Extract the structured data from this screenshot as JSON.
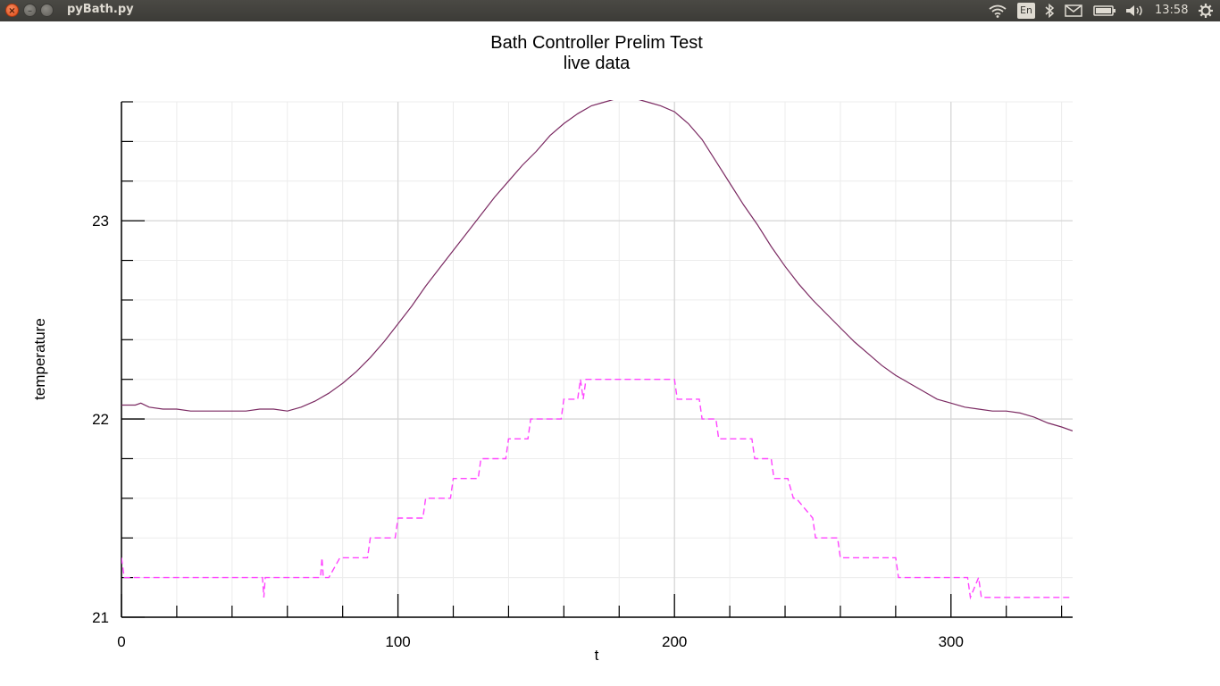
{
  "window": {
    "title": "pyBath.py",
    "close_glyph": "×",
    "minimize_glyph": "–"
  },
  "tray": {
    "keyboard_layout": "En",
    "clock": "13:58",
    "icons": [
      "wifi-icon",
      "keyboard-icon",
      "bluetooth-icon",
      "mail-icon",
      "battery-icon",
      "volume-icon",
      "clock",
      "settings-gear-icon"
    ]
  },
  "chart_data": {
    "type": "line",
    "title": "Bath Controller Prelim Test",
    "subtitle": "live data",
    "xlabel": "t",
    "ylabel": "temperature",
    "xlim": [
      0,
      344
    ],
    "ylim": [
      21,
      23.6
    ],
    "x_ticks": [
      0,
      100,
      200,
      300
    ],
    "x_tick_labels": [
      "0",
      "100",
      "200",
      "300"
    ],
    "y_ticks": [
      21,
      22,
      23
    ],
    "y_tick_labels": [
      "21",
      "22",
      "23"
    ],
    "grid": true,
    "legend": "none",
    "series": [
      {
        "style": "solid",
        "color": "#7b2a62",
        "x": [
          0,
          5,
          7,
          10,
          15,
          20,
          25,
          30,
          35,
          40,
          45,
          50,
          55,
          60,
          65,
          70,
          75,
          80,
          85,
          90,
          95,
          100,
          105,
          110,
          115,
          120,
          125,
          130,
          135,
          140,
          145,
          150,
          155,
          160,
          165,
          170,
          175,
          180,
          185,
          190,
          195,
          200,
          205,
          210,
          215,
          220,
          225,
          230,
          235,
          240,
          245,
          250,
          255,
          260,
          265,
          270,
          275,
          280,
          285,
          290,
          295,
          300,
          305,
          310,
          315,
          320,
          325,
          330,
          335,
          340,
          344
        ],
        "y": [
          22.07,
          22.07,
          22.08,
          22.06,
          22.05,
          22.05,
          22.04,
          22.04,
          22.04,
          22.04,
          22.04,
          22.05,
          22.05,
          22.04,
          22.06,
          22.09,
          22.13,
          22.18,
          22.24,
          22.31,
          22.39,
          22.48,
          22.57,
          22.67,
          22.76,
          22.85,
          22.94,
          23.03,
          23.12,
          23.2,
          23.28,
          23.35,
          23.43,
          23.49,
          23.54,
          23.58,
          23.6,
          23.62,
          23.62,
          23.6,
          23.58,
          23.55,
          23.49,
          23.41,
          23.3,
          23.19,
          23.08,
          22.98,
          22.87,
          22.77,
          22.68,
          22.6,
          22.53,
          22.46,
          22.39,
          22.33,
          22.27,
          22.22,
          22.18,
          22.14,
          22.1,
          22.08,
          22.06,
          22.05,
          22.04,
          22.04,
          22.03,
          22.01,
          21.98,
          21.96,
          21.94
        ]
      },
      {
        "style": "dashed",
        "color": "#ff44ff",
        "x": [
          0,
          1,
          2,
          51,
          51.5,
          52,
          72,
          72.5,
          73,
          75,
          79,
          80,
          89,
          90,
          99,
          100,
          109,
          110,
          119,
          120,
          129,
          130,
          139,
          140,
          147,
          148,
          152,
          153,
          159,
          160,
          165,
          166,
          167,
          168,
          170,
          200,
          201,
          203,
          209,
          210,
          215,
          216,
          220,
          221,
          228,
          229,
          235,
          236,
          240,
          241,
          243,
          244,
          250,
          251,
          259,
          260,
          265,
          266,
          280,
          281,
          285,
          286,
          306,
          307,
          310,
          311,
          315,
          316,
          345,
          346,
          347
        ],
        "y": [
          21.3,
          21.2,
          21.2,
          21.2,
          21.1,
          21.2,
          21.2,
          21.3,
          21.2,
          21.2,
          21.3,
          21.3,
          21.3,
          21.4,
          21.4,
          21.5,
          21.5,
          21.6,
          21.6,
          21.7,
          21.7,
          21.8,
          21.8,
          21.9,
          21.9,
          22.0,
          22.0,
          22.0,
          22.0,
          22.1,
          22.1,
          22.2,
          22.1,
          22.2,
          22.2,
          22.2,
          22.1,
          22.1,
          22.1,
          22.0,
          22.0,
          21.9,
          21.9,
          21.9,
          21.9,
          21.8,
          21.8,
          21.7,
          21.7,
          21.7,
          21.6,
          21.6,
          21.5,
          21.4,
          21.4,
          21.3,
          21.3,
          21.3,
          21.3,
          21.2,
          21.2,
          21.2,
          21.2,
          21.1,
          21.2,
          21.1,
          21.1,
          21.1,
          21.1,
          21.0,
          21.1
        ]
      }
    ]
  }
}
